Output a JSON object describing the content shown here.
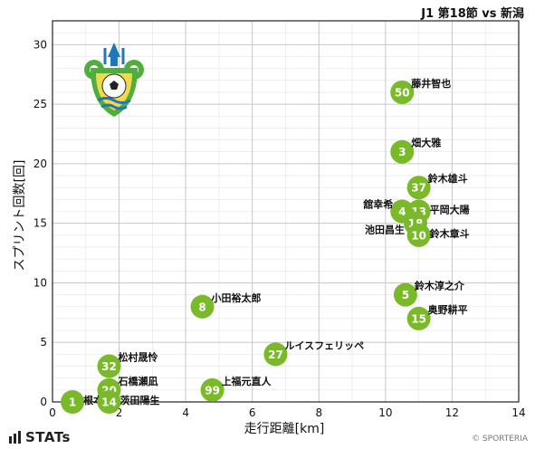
{
  "header": {
    "title": "J1 第18節 vs 新潟"
  },
  "footer": {
    "brand": "STATs",
    "copyright": "© SPORTERIA"
  },
  "logo": {
    "name": "club-crest",
    "colors": {
      "primary": "#4fae3c",
      "secondary": "#1f77b8",
      "accent": "#f2d94a"
    }
  },
  "colors": {
    "point": "#7ab929",
    "grid": "#c8c8c8",
    "axis": "#222222"
  },
  "chart_data": {
    "type": "scatter",
    "xlabel": "走行距離[km]",
    "ylabel": "スプリント回数[回]",
    "xlim": [
      0,
      14
    ],
    "ylim": [
      0,
      32
    ],
    "xticks": [
      0,
      2,
      4,
      6,
      8,
      10,
      12,
      14
    ],
    "yticks": [
      0,
      5,
      10,
      15,
      20,
      25,
      30
    ],
    "grid": true,
    "points": [
      {
        "number": "50",
        "name": "藤井智也",
        "x": 10.5,
        "y": 26,
        "label_pos": "right-top"
      },
      {
        "number": "3",
        "name": "畑大雅",
        "x": 10.5,
        "y": 21,
        "label_pos": "right-top"
      },
      {
        "number": "37",
        "name": "鈴木雄斗",
        "x": 11.0,
        "y": 18,
        "label_pos": "right-top"
      },
      {
        "number": "4",
        "name": "舘幸希",
        "x": 10.5,
        "y": 16,
        "label_pos": "left"
      },
      {
        "number": "13",
        "name": "平岡大陽",
        "x": 11.0,
        "y": 16,
        "label_pos": "right"
      },
      {
        "number": "18",
        "name": "池田昌生",
        "x": 10.9,
        "y": 15,
        "label_pos": "left-below"
      },
      {
        "number": "10",
        "name": "鈴木章斗",
        "x": 11.0,
        "y": 14,
        "label_pos": "right"
      },
      {
        "number": "5",
        "name": "鈴木淳之介",
        "x": 10.6,
        "y": 9,
        "label_pos": "right-top"
      },
      {
        "number": "15",
        "name": "奥野耕平",
        "x": 11.0,
        "y": 7,
        "label_pos": "right-top"
      },
      {
        "number": "8",
        "name": "小田裕太郎",
        "x": 4.5,
        "y": 8,
        "label_pos": "right-top"
      },
      {
        "number": "27",
        "name": "ルイスフェリッペ",
        "x": 6.7,
        "y": 4,
        "label_pos": "right-top"
      },
      {
        "number": "32",
        "name": "松村晟怜",
        "x": 1.7,
        "y": 3,
        "label_pos": "right-top"
      },
      {
        "number": "20",
        "name": "石橋瀬凪",
        "x": 1.7,
        "y": 1,
        "label_pos": "right-top"
      },
      {
        "number": "99",
        "name": "上福元直人",
        "x": 4.8,
        "y": 1,
        "label_pos": "right-top"
      },
      {
        "number": "1",
        "name": "根本凌",
        "x": 0.6,
        "y": 0,
        "label_pos": "right"
      },
      {
        "number": "14",
        "name": "茨田陽生",
        "x": 1.7,
        "y": 0,
        "label_pos": "right"
      }
    ]
  }
}
